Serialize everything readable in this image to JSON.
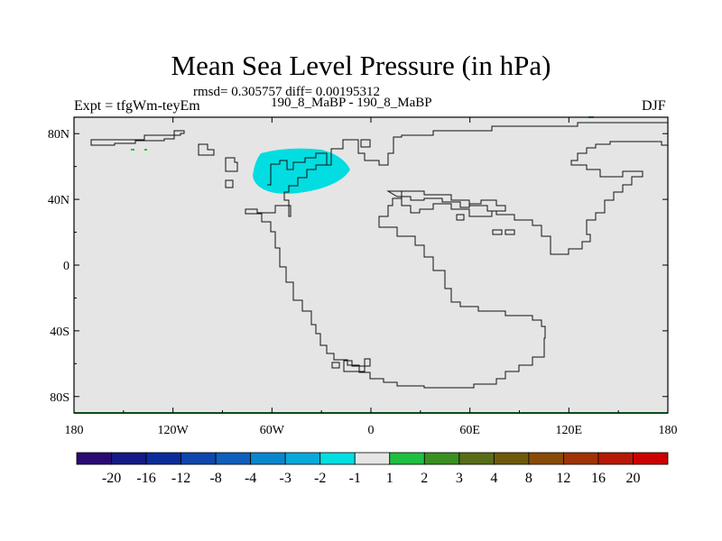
{
  "chart_data": {
    "type": "heatmap",
    "title": "Mean Sea Level Pressure (in hPa)",
    "stats_line": "rmsd= 0.305757 diff= 0.00195312",
    "experiment_label": "Expt = tfgWm-teyEm",
    "comparison": "190_8_MaBP - 190_8_MaBP",
    "season": "DJF",
    "x_ticks": [
      "180",
      "120W",
      "60W",
      "0",
      "60E",
      "120E",
      "180"
    ],
    "x_tick_values": [
      -180,
      -120,
      -60,
      0,
      60,
      120,
      180
    ],
    "y_ticks": [
      "80N",
      "40N",
      "0",
      "40S",
      "80S"
    ],
    "y_tick_values": [
      80,
      40,
      0,
      -40,
      -80
    ],
    "xlim": [
      -180,
      180
    ],
    "ylim": [
      -90,
      90
    ],
    "colorbar_levels": [
      "-20",
      "-16",
      "-12",
      "-8",
      "-4",
      "-3",
      "-2",
      "-1",
      "1",
      "2",
      "3",
      "4",
      "8",
      "12",
      "16",
      "20"
    ],
    "colorbar_colors": [
      "#2a0b73",
      "#151a86",
      "#0a2d9a",
      "#0d46ad",
      "#0f5fbd",
      "#0a86cf",
      "#08a9da",
      "#02dde1",
      "#e5e5e5",
      "#1fbf42",
      "#3a8f21",
      "#576d17",
      "#6f5a0b",
      "#8a4b06",
      "#a03306",
      "#b61806",
      "#cb0000"
    ],
    "background_color": "#e5e5e5",
    "anomaly_region": {
      "label": "-2 to -1 hPa",
      "center_lon": -50,
      "center_lat": 58,
      "color": "#02dde1"
    }
  }
}
